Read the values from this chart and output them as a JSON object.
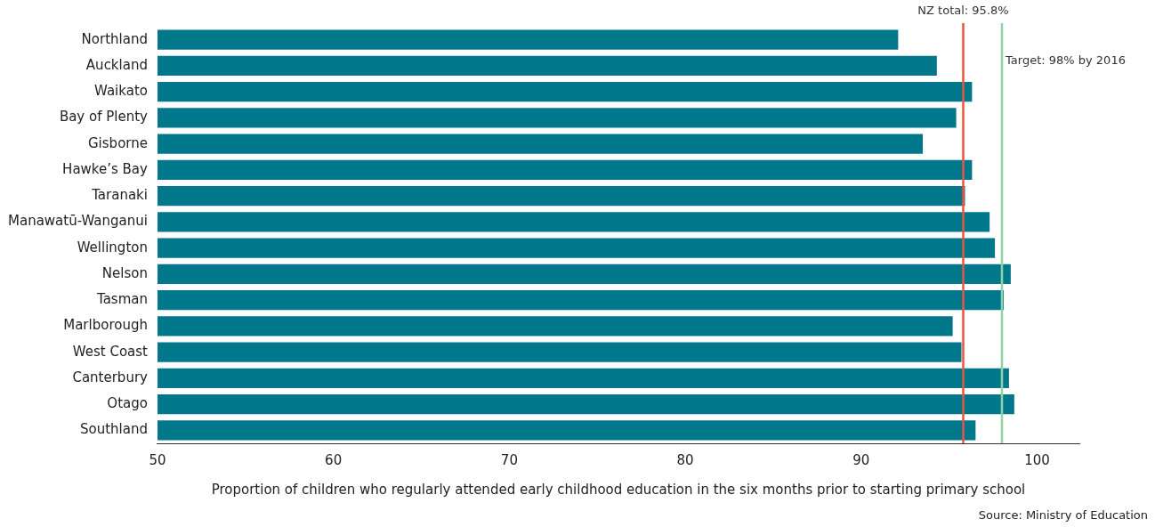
{
  "chart_data": {
    "type": "bar",
    "orientation": "horizontal",
    "categories": [
      "Northland",
      "Auckland",
      "Waikato",
      "Bay of Plenty",
      "Gisborne",
      "Hawke’s Bay",
      "Taranaki",
      "Manawatū-Wanganui",
      "Wellington",
      "Nelson",
      "Tasman",
      "Marlborough",
      "West Coast",
      "Canterbury",
      "Otago",
      "Southland"
    ],
    "values": [
      92.1,
      94.3,
      96.3,
      95.4,
      93.5,
      96.3,
      95.9,
      97.3,
      97.6,
      98.5,
      98.1,
      95.2,
      95.7,
      98.4,
      98.7,
      96.5
    ],
    "color": "#00778b",
    "xlim": [
      50,
      102.4
    ],
    "xticks": [
      50,
      60,
      70,
      80,
      90,
      100
    ],
    "xlabel": "Proportion of children who regularly attended early childhood education in the six months prior to starting primary school",
    "ref_lines": [
      {
        "axis": "x",
        "value": 95.8,
        "label": "NZ total: 95.8%",
        "color": "#e8553e"
      },
      {
        "axis": "x",
        "value": 98,
        "label": "Target: 98% by 2016",
        "color": "#8fd3a6"
      }
    ],
    "annotations": [
      "Source: Ministry of Education"
    ],
    "grid": false,
    "legend": false
  }
}
